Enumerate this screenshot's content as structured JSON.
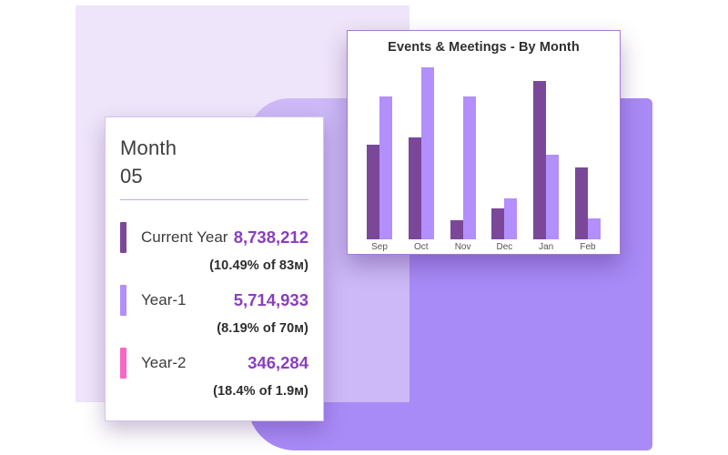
{
  "background": {
    "purple_shape_color": "#A98BF7",
    "lavender_shape_color": "#EDE6FA"
  },
  "stats_card": {
    "title_line1": "Month",
    "title_line2": "05",
    "value_color": "#8A3EBE",
    "rows": [
      {
        "label": "Current Year",
        "value": "8,738,212",
        "detail": "(10.49% of 83ᴍ)",
        "swatch_color": "#7B4899"
      },
      {
        "label": "Year-1",
        "value": "5,714,933",
        "detail": "(8.19% of 70ᴍ)",
        "swatch_color": "#B28FFA"
      },
      {
        "label": "Year-2",
        "value": "346,284",
        "detail": "(18.4% of 1.9ᴍ)",
        "swatch_color": "#F768C5"
      }
    ]
  },
  "chart_card": {
    "title": "Events & Meetings - By Month"
  },
  "chart_data": {
    "type": "bar",
    "title": "Events & Meetings - By Month",
    "categories": [
      "Sep",
      "Oct",
      "Nov",
      "Dec",
      "Jan",
      "Feb"
    ],
    "series": [
      {
        "name": "Current Year",
        "color": "#7B4899",
        "values": [
          55,
          59,
          11,
          18,
          92,
          42
        ]
      },
      {
        "name": "Year-1",
        "color": "#B28FFA",
        "values": [
          83,
          100,
          83,
          24,
          49,
          12
        ]
      }
    ],
    "ylim": [
      0,
      100
    ],
    "grid": false,
    "legend_position": "none",
    "xlabel": "",
    "ylabel": ""
  }
}
